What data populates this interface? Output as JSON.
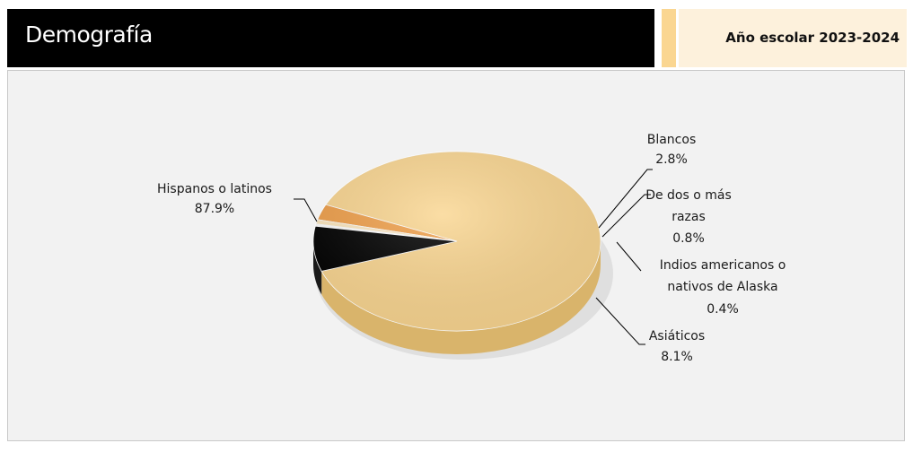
{
  "header": {
    "title": "Demografía",
    "year_label": "Año escolar 2023-2024"
  },
  "colors": {
    "header_bg": "#000000",
    "accent": "#fad691",
    "year_bg": "#fdf1dc",
    "panel_bg": "#f2f2f2"
  },
  "chart_data": {
    "type": "pie",
    "title": "",
    "slices": [
      {
        "label": [
          "Hispanos o latinos"
        ],
        "pct_text": "87.9%",
        "value": 87.9,
        "color": "#fad691",
        "side": "#d9b46b"
      },
      {
        "label": [
          "Blancos"
        ],
        "pct_text": "2.8%",
        "value": 2.8,
        "color": "#f0a04b",
        "side": "#c47a2a"
      },
      {
        "label": [
          "De dos o más",
          "razas"
        ],
        "pct_text": "0.8%",
        "value": 0.8,
        "color": "#fde8c0",
        "side": "#d8c39a"
      },
      {
        "label": [
          "Indios americanos o",
          "nativos de Alaska"
        ],
        "pct_text": "0.4%",
        "value": 0.4,
        "color": "#ffffff",
        "side": "#cccccc"
      },
      {
        "label": [
          "Asiáticos"
        ],
        "pct_text": "8.1%",
        "value": 8.1,
        "color": "#000000",
        "side": "#1a1a1a"
      }
    ]
  }
}
